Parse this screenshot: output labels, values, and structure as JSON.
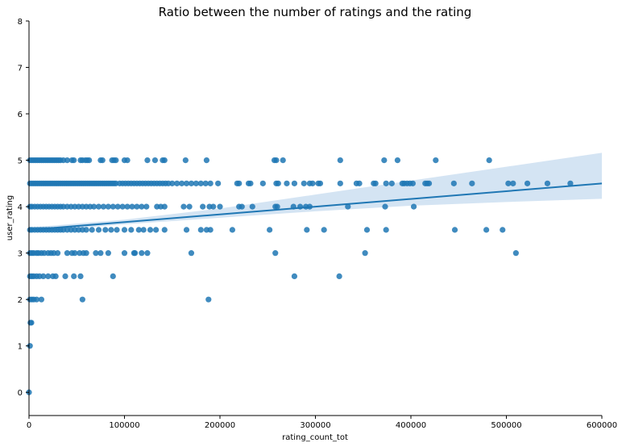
{
  "chart_data": {
    "type": "scatter",
    "title": "Ratio between the number of ratings and the rating",
    "xlabel": "rating_count_tot",
    "ylabel": "user_rating",
    "xlim": [
      0,
      600000
    ],
    "ylim": [
      -0.5,
      8
    ],
    "x_ticks": [
      0,
      100000,
      200000,
      300000,
      400000,
      500000,
      600000
    ],
    "y_ticks": [
      0,
      1,
      2,
      3,
      4,
      5,
      6,
      7,
      8
    ],
    "grid": false,
    "colors": {
      "points": "#1f77b4",
      "line": "#1f77b4",
      "ci_band": "#c6dbef"
    },
    "regression": {
      "x": [
        0,
        600000
      ],
      "y": [
        3.5,
        4.5
      ]
    },
    "confidence_band": {
      "x": [
        0,
        100000,
        200000,
        300000,
        400000,
        500000,
        600000
      ],
      "upper": [
        3.55,
        3.72,
        3.96,
        4.26,
        4.56,
        4.86,
        5.16
      ],
      "lower": [
        3.45,
        3.62,
        3.76,
        3.9,
        4.02,
        4.1,
        4.17
      ]
    },
    "points": [
      [
        0,
        0
      ],
      [
        1000,
        1
      ],
      [
        2500,
        1.5
      ],
      [
        1500,
        1.5
      ],
      [
        1000,
        2
      ],
      [
        3000,
        2
      ],
      [
        5000,
        2
      ],
      [
        8000,
        2
      ],
      [
        13000,
        2
      ],
      [
        56000,
        2
      ],
      [
        188000,
        2
      ],
      [
        1000,
        2.5
      ],
      [
        3000,
        2.5
      ],
      [
        5000,
        2.5
      ],
      [
        8000,
        2.5
      ],
      [
        11000,
        2.5
      ],
      [
        15000,
        2.5
      ],
      [
        20000,
        2.5
      ],
      [
        25000,
        2.5
      ],
      [
        28000,
        2.5
      ],
      [
        38000,
        2.5
      ],
      [
        47000,
        2.5
      ],
      [
        54000,
        2.5
      ],
      [
        88000,
        2.5
      ],
      [
        278000,
        2.5
      ],
      [
        325000,
        2.5
      ],
      [
        1000,
        3
      ],
      [
        3000,
        3
      ],
      [
        5000,
        3
      ],
      [
        8000,
        3
      ],
      [
        10000,
        3
      ],
      [
        13000,
        3
      ],
      [
        16000,
        3
      ],
      [
        20000,
        3
      ],
      [
        23000,
        3
      ],
      [
        26000,
        3
      ],
      [
        30000,
        3
      ],
      [
        40000,
        3
      ],
      [
        45000,
        3
      ],
      [
        48000,
        3
      ],
      [
        53000,
        3
      ],
      [
        57000,
        3
      ],
      [
        60000,
        3
      ],
      [
        70000,
        3
      ],
      [
        75000,
        3
      ],
      [
        83000,
        3
      ],
      [
        100000,
        3
      ],
      [
        110000,
        3
      ],
      [
        111000,
        3
      ],
      [
        118000,
        3
      ],
      [
        124000,
        3
      ],
      [
        170000,
        3
      ],
      [
        258000,
        3
      ],
      [
        352000,
        3
      ],
      [
        510000,
        3
      ],
      [
        1000,
        3.5
      ],
      [
        3000,
        3.5
      ],
      [
        6000,
        3.5
      ],
      [
        9000,
        3.5
      ],
      [
        12000,
        3.5
      ],
      [
        15000,
        3.5
      ],
      [
        18000,
        3.5
      ],
      [
        21000,
        3.5
      ],
      [
        24000,
        3.5
      ],
      [
        27000,
        3.5
      ],
      [
        30000,
        3.5
      ],
      [
        33000,
        3.5
      ],
      [
        36000,
        3.5
      ],
      [
        40000,
        3.5
      ],
      [
        44000,
        3.5
      ],
      [
        48000,
        3.5
      ],
      [
        52000,
        3.5
      ],
      [
        56000,
        3.5
      ],
      [
        60000,
        3.5
      ],
      [
        66000,
        3.5
      ],
      [
        73000,
        3.5
      ],
      [
        80000,
        3.5
      ],
      [
        86000,
        3.5
      ],
      [
        92000,
        3.5
      ],
      [
        100000,
        3.5
      ],
      [
        107000,
        3.5
      ],
      [
        115000,
        3.5
      ],
      [
        120000,
        3.5
      ],
      [
        127000,
        3.5
      ],
      [
        133000,
        3.5
      ],
      [
        142000,
        3.5
      ],
      [
        165000,
        3.5
      ],
      [
        180000,
        3.5
      ],
      [
        186000,
        3.5
      ],
      [
        190000,
        3.5
      ],
      [
        213000,
        3.5
      ],
      [
        252000,
        3.5
      ],
      [
        291000,
        3.5
      ],
      [
        309000,
        3.5
      ],
      [
        354000,
        3.5
      ],
      [
        374000,
        3.5
      ],
      [
        446000,
        3.5
      ],
      [
        479000,
        3.5
      ],
      [
        496000,
        3.5
      ],
      [
        1000,
        4
      ],
      [
        3000,
        4
      ],
      [
        6000,
        4
      ],
      [
        9000,
        4
      ],
      [
        12000,
        4
      ],
      [
        15000,
        4
      ],
      [
        18000,
        4
      ],
      [
        21000,
        4
      ],
      [
        24000,
        4
      ],
      [
        27000,
        4
      ],
      [
        30000,
        4
      ],
      [
        33000,
        4
      ],
      [
        36000,
        4
      ],
      [
        40000,
        4
      ],
      [
        44000,
        4
      ],
      [
        48000,
        4
      ],
      [
        52000,
        4
      ],
      [
        56000,
        4
      ],
      [
        60000,
        4
      ],
      [
        64000,
        4
      ],
      [
        68000,
        4
      ],
      [
        73000,
        4
      ],
      [
        78000,
        4
      ],
      [
        83000,
        4
      ],
      [
        88000,
        4
      ],
      [
        93000,
        4
      ],
      [
        98000,
        4
      ],
      [
        103000,
        4
      ],
      [
        108000,
        4
      ],
      [
        113000,
        4
      ],
      [
        118000,
        4
      ],
      [
        123000,
        4
      ],
      [
        134000,
        4
      ],
      [
        138000,
        4
      ],
      [
        142000,
        4
      ],
      [
        162000,
        4
      ],
      [
        168000,
        4
      ],
      [
        182000,
        4
      ],
      [
        189000,
        4
      ],
      [
        193000,
        4
      ],
      [
        200000,
        4
      ],
      [
        220000,
        4
      ],
      [
        223000,
        4
      ],
      [
        234000,
        4
      ],
      [
        258000,
        4
      ],
      [
        260000,
        4
      ],
      [
        277000,
        4
      ],
      [
        284000,
        4
      ],
      [
        290000,
        4
      ],
      [
        294000,
        4
      ],
      [
        334000,
        4
      ],
      [
        373000,
        4
      ],
      [
        403000,
        4
      ],
      [
        1000,
        4.5
      ],
      [
        3000,
        4.5
      ],
      [
        5000,
        4.5
      ],
      [
        7000,
        4.5
      ],
      [
        9000,
        4.5
      ],
      [
        11000,
        4.5
      ],
      [
        13000,
        4.5
      ],
      [
        15000,
        4.5
      ],
      [
        17000,
        4.5
      ],
      [
        19000,
        4.5
      ],
      [
        21000,
        4.5
      ],
      [
        23000,
        4.5
      ],
      [
        25000,
        4.5
      ],
      [
        27000,
        4.5
      ],
      [
        29000,
        4.5
      ],
      [
        31000,
        4.5
      ],
      [
        33000,
        4.5
      ],
      [
        35000,
        4.5
      ],
      [
        37000,
        4.5
      ],
      [
        39000,
        4.5
      ],
      [
        41000,
        4.5
      ],
      [
        43000,
        4.5
      ],
      [
        45000,
        4.5
      ],
      [
        47000,
        4.5
      ],
      [
        49000,
        4.5
      ],
      [
        51000,
        4.5
      ],
      [
        53000,
        4.5
      ],
      [
        55000,
        4.5
      ],
      [
        57000,
        4.5
      ],
      [
        59000,
        4.5
      ],
      [
        61000,
        4.5
      ],
      [
        63000,
        4.5
      ],
      [
        65000,
        4.5
      ],
      [
        67000,
        4.5
      ],
      [
        69000,
        4.5
      ],
      [
        71000,
        4.5
      ],
      [
        73000,
        4.5
      ],
      [
        75000,
        4.5
      ],
      [
        77000,
        4.5
      ],
      [
        79000,
        4.5
      ],
      [
        81000,
        4.5
      ],
      [
        83000,
        4.5
      ],
      [
        85000,
        4.5
      ],
      [
        87000,
        4.5
      ],
      [
        89000,
        4.5
      ],
      [
        91000,
        4.5
      ],
      [
        95000,
        4.5
      ],
      [
        98000,
        4.5
      ],
      [
        101000,
        4.5
      ],
      [
        104000,
        4.5
      ],
      [
        107000,
        4.5
      ],
      [
        110000,
        4.5
      ],
      [
        113000,
        4.5
      ],
      [
        116000,
        4.5
      ],
      [
        119000,
        4.5
      ],
      [
        122000,
        4.5
      ],
      [
        125000,
        4.5
      ],
      [
        128000,
        4.5
      ],
      [
        131000,
        4.5
      ],
      [
        134000,
        4.5
      ],
      [
        137000,
        4.5
      ],
      [
        140000,
        4.5
      ],
      [
        143000,
        4.5
      ],
      [
        146000,
        4.5
      ],
      [
        150000,
        4.5
      ],
      [
        155000,
        4.5
      ],
      [
        160000,
        4.5
      ],
      [
        165000,
        4.5
      ],
      [
        170000,
        4.5
      ],
      [
        175000,
        4.5
      ],
      [
        180000,
        4.5
      ],
      [
        185000,
        4.5
      ],
      [
        190000,
        4.5
      ],
      [
        198000,
        4.5
      ],
      [
        218000,
        4.5
      ],
      [
        220000,
        4.5
      ],
      [
        230000,
        4.5
      ],
      [
        232000,
        4.5
      ],
      [
        245000,
        4.5
      ],
      [
        259000,
        4.5
      ],
      [
        261000,
        4.5
      ],
      [
        270000,
        4.5
      ],
      [
        278000,
        4.5
      ],
      [
        288000,
        4.5
      ],
      [
        294000,
        4.5
      ],
      [
        297000,
        4.5
      ],
      [
        303000,
        4.5
      ],
      [
        305000,
        4.5
      ],
      [
        326000,
        4.5
      ],
      [
        343000,
        4.5
      ],
      [
        346000,
        4.5
      ],
      [
        361000,
        4.5
      ],
      [
        363000,
        4.5
      ],
      [
        374000,
        4.5
      ],
      [
        380000,
        4.5
      ],
      [
        391000,
        4.5
      ],
      [
        393000,
        4.5
      ],
      [
        396000,
        4.5
      ],
      [
        399000,
        4.5
      ],
      [
        402000,
        4.5
      ],
      [
        415000,
        4.5
      ],
      [
        417000,
        4.5
      ],
      [
        419000,
        4.5
      ],
      [
        445000,
        4.5
      ],
      [
        464000,
        4.5
      ],
      [
        502000,
        4.5
      ],
      [
        507000,
        4.5
      ],
      [
        522000,
        4.5
      ],
      [
        543000,
        4.5
      ],
      [
        567000,
        4.5
      ],
      [
        1000,
        5
      ],
      [
        3000,
        5
      ],
      [
        5000,
        5
      ],
      [
        7000,
        5
      ],
      [
        9000,
        5
      ],
      [
        11000,
        5
      ],
      [
        13000,
        5
      ],
      [
        15000,
        5
      ],
      [
        17000,
        5
      ],
      [
        19000,
        5
      ],
      [
        21000,
        5
      ],
      [
        23000,
        5
      ],
      [
        25000,
        5
      ],
      [
        27000,
        5
      ],
      [
        29000,
        5
      ],
      [
        31000,
        5
      ],
      [
        33000,
        5
      ],
      [
        36000,
        5
      ],
      [
        40000,
        5
      ],
      [
        45000,
        5
      ],
      [
        47000,
        5
      ],
      [
        54000,
        5
      ],
      [
        56000,
        5
      ],
      [
        59000,
        5
      ],
      [
        61000,
        5
      ],
      [
        63000,
        5
      ],
      [
        75000,
        5
      ],
      [
        77000,
        5
      ],
      [
        87000,
        5
      ],
      [
        89000,
        5
      ],
      [
        91000,
        5
      ],
      [
        100000,
        5
      ],
      [
        103000,
        5
      ],
      [
        124000,
        5
      ],
      [
        132000,
        5
      ],
      [
        140000,
        5
      ],
      [
        142000,
        5
      ],
      [
        164000,
        5
      ],
      [
        186000,
        5
      ],
      [
        257000,
        5
      ],
      [
        259000,
        5
      ],
      [
        266000,
        5
      ],
      [
        326000,
        5
      ],
      [
        372000,
        5
      ],
      [
        386000,
        5
      ],
      [
        426000,
        5
      ],
      [
        482000,
        5
      ]
    ]
  }
}
